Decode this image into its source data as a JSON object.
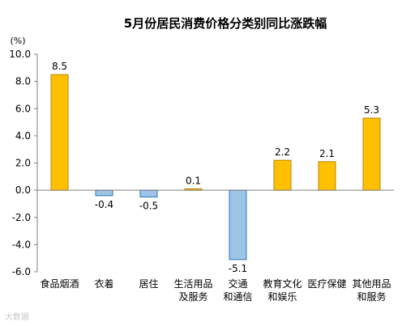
{
  "chart_data": {
    "type": "bar",
    "title": "5月份居民消费价格分类别同比涨跌幅",
    "unit_label": "(%)",
    "categories": [
      [
        "食品烟酒"
      ],
      [
        "衣着"
      ],
      [
        "居住"
      ],
      [
        "生活用品",
        "及服务"
      ],
      [
        "交通",
        "和通信"
      ],
      [
        "教育文化",
        "和娱乐"
      ],
      [
        "医疗保健"
      ],
      [
        "其他用品",
        "和服务"
      ]
    ],
    "values": [
      8.5,
      -0.4,
      -0.5,
      0.1,
      -5.1,
      2.2,
      2.1,
      5.3
    ],
    "value_labels": [
      "8.5",
      "-0.4",
      "-0.5",
      "0.1",
      "-5.1",
      "2.2",
      "2.1",
      "5.3"
    ],
    "ylim": [
      -6.0,
      10.0
    ],
    "yticks": [
      "10.0",
      "8.0",
      "6.0",
      "4.0",
      "2.0",
      "0.0",
      "-2.0",
      "-4.0",
      "-6.0"
    ],
    "ytick_values": [
      10,
      8,
      6,
      4,
      2,
      0,
      -2,
      -4,
      -6
    ],
    "grid": false,
    "colors": {
      "positive_fill": "#FFC000",
      "positive_stroke": "#B8860B",
      "negative_fill": "#9DC3E6",
      "negative_stroke": "#2E75B6",
      "axis": "#808080"
    }
  },
  "watermark": "大数据"
}
